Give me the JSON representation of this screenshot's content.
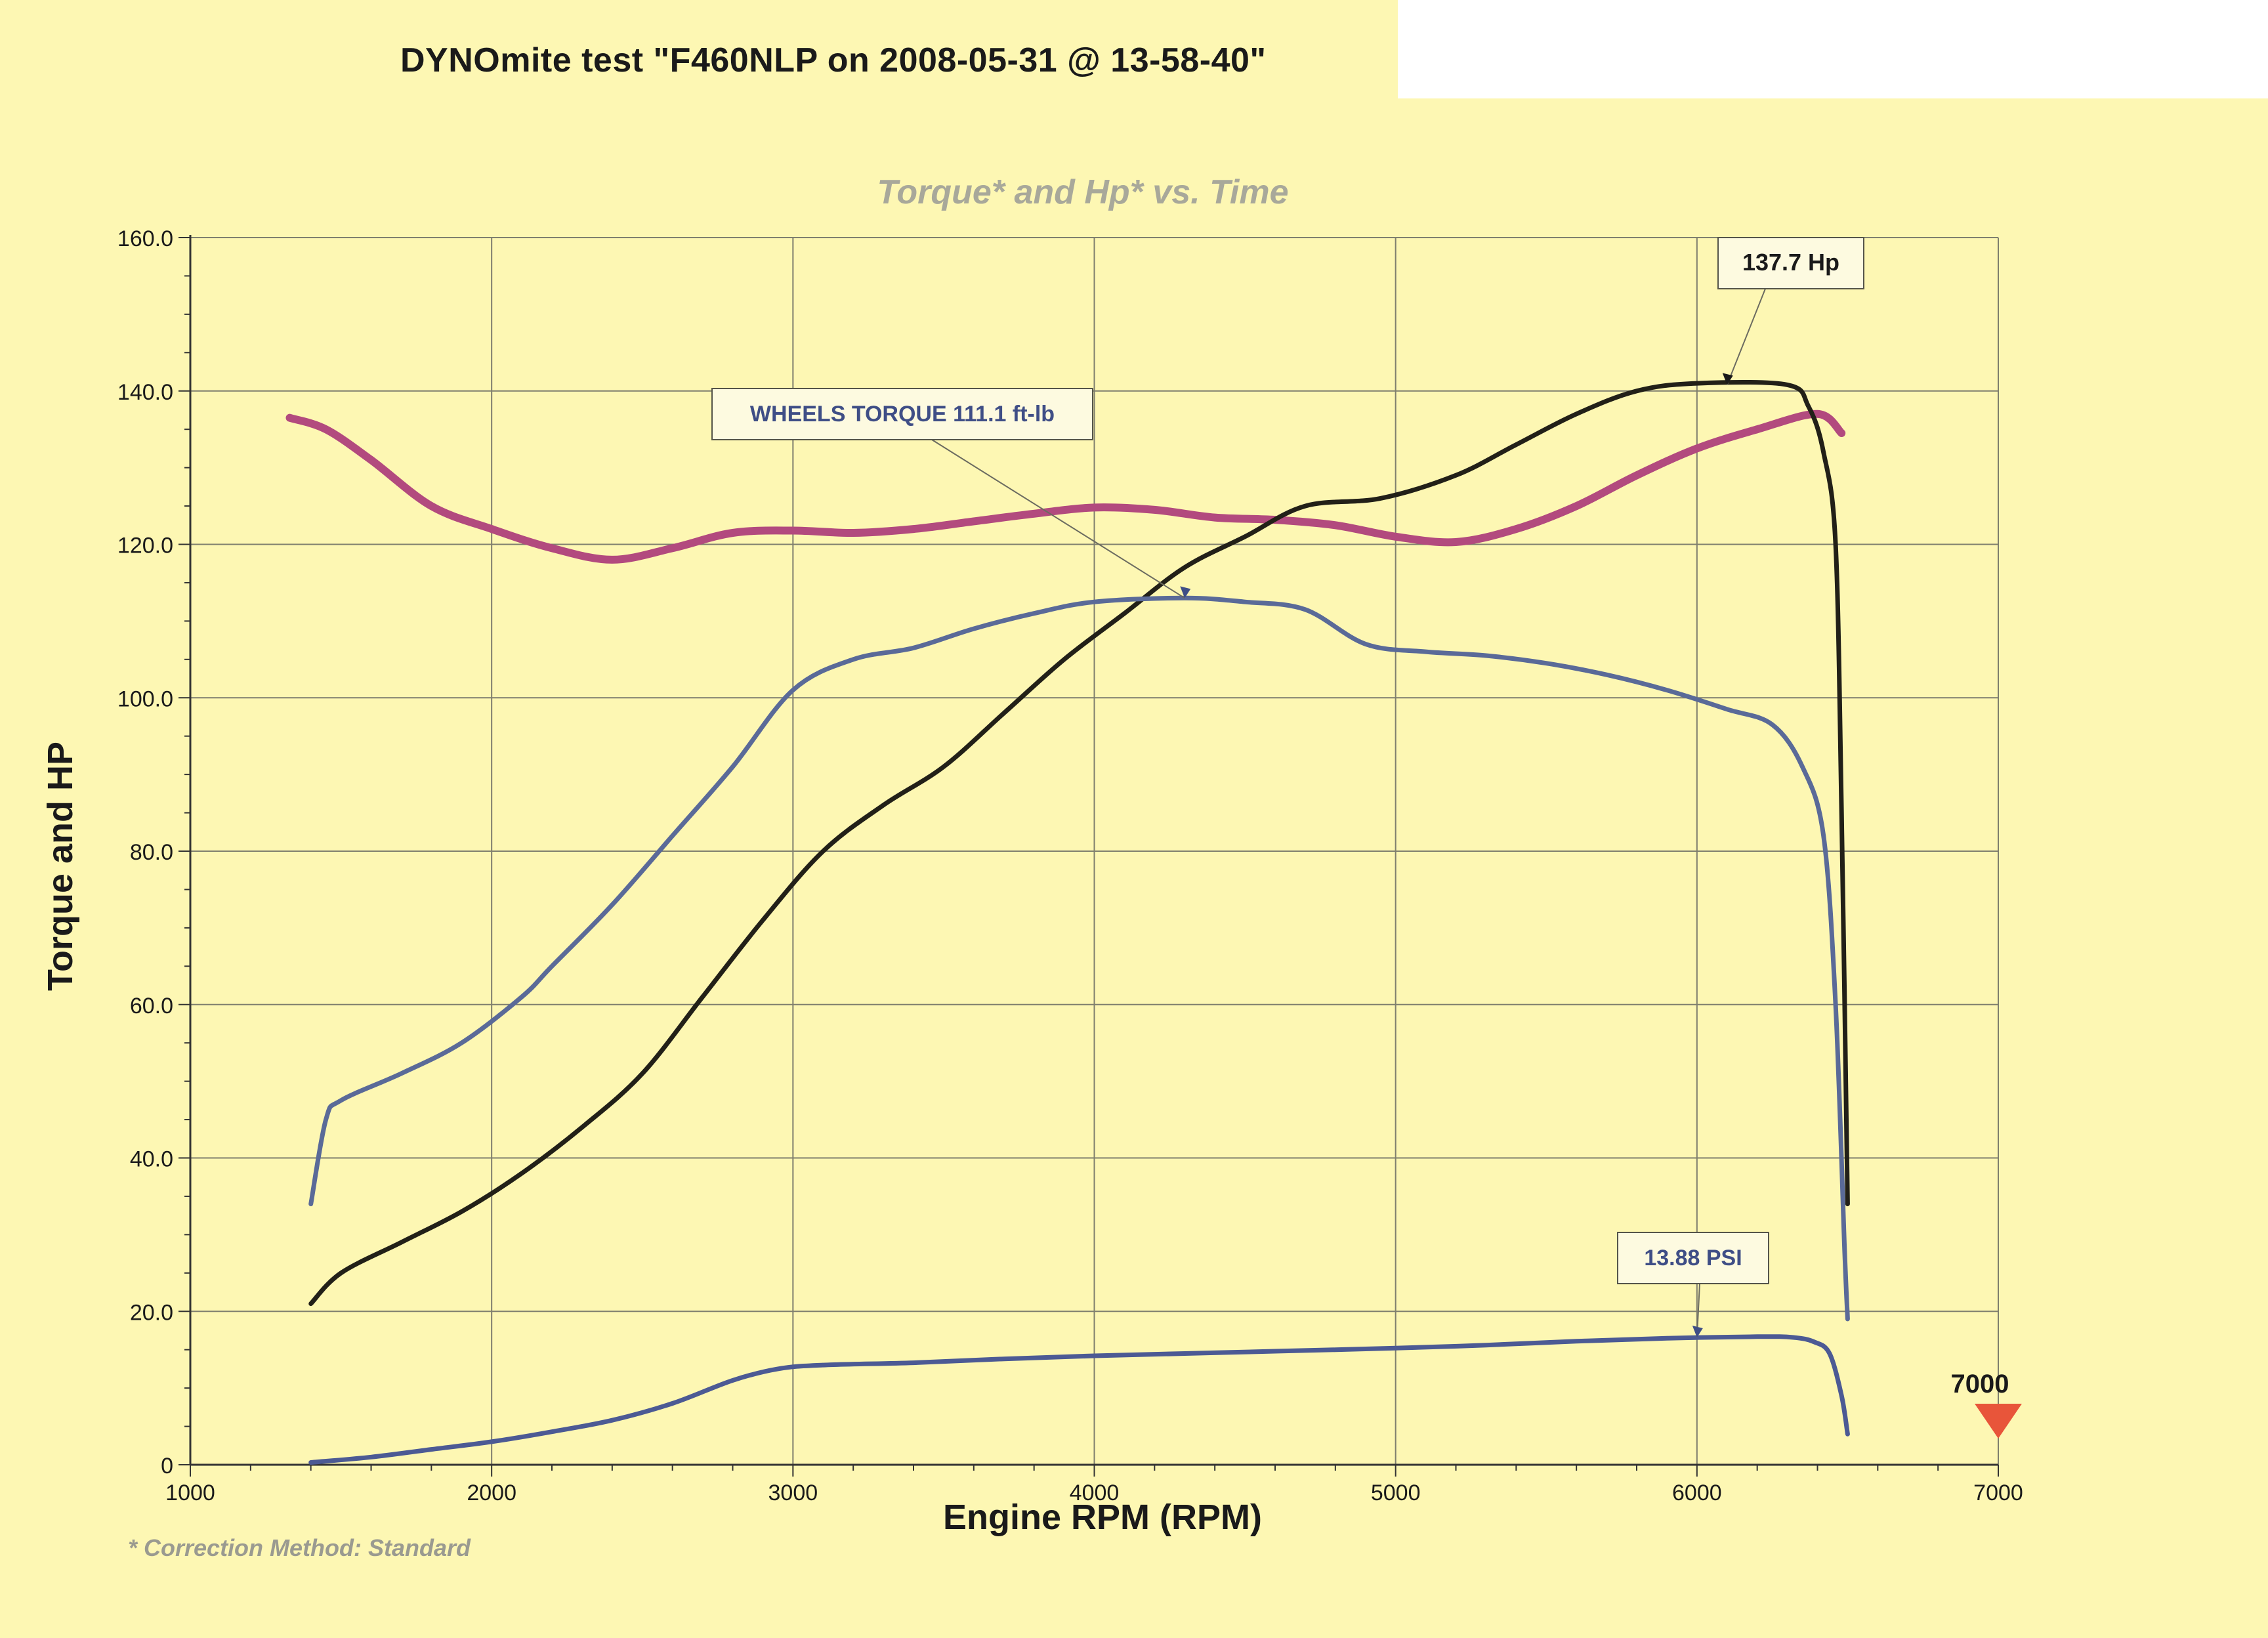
{
  "document": {
    "title": "DYNOmite test \"F460NLP on 2008-05-31 @ 13-58-40\"",
    "footnote": "* Correction Method: Standard"
  },
  "colors": {
    "background": "#fdf7b3",
    "grid": "#7f7f6e",
    "torque": "#5a6a98",
    "hp": "#222018",
    "magenta": "#b24a7e",
    "boost": "#4c5a94",
    "marker": "#e8553a"
  },
  "chart_data": {
    "type": "line",
    "title": "Torque* and Hp* vs. Time",
    "xlabel": "Engine RPM (RPM)",
    "ylabel": "Torque and HP",
    "xlim": [
      1000,
      7000
    ],
    "ylim": [
      0,
      160
    ],
    "grid": true,
    "x_ticks": [
      "1000",
      "2000",
      "3000",
      "4000",
      "5000",
      "6000",
      "7000"
    ],
    "y_ticks": [
      "0",
      "20.0",
      "40.0",
      "60.0",
      "80.0",
      "100.0",
      "120.0",
      "140.0",
      "160.0"
    ],
    "series": [
      {
        "name": "",
        "color": "magenta",
        "points": [
          [
            1330,
            136.5
          ],
          [
            1450,
            135
          ],
          [
            1600,
            131
          ],
          [
            1800,
            125
          ],
          [
            2000,
            122
          ],
          [
            2200,
            119.5
          ],
          [
            2400,
            118
          ],
          [
            2600,
            119.5
          ],
          [
            2800,
            121.5
          ],
          [
            3000,
            121.8
          ],
          [
            3200,
            121.5
          ],
          [
            3400,
            122
          ],
          [
            3600,
            123
          ],
          [
            3800,
            124
          ],
          [
            4000,
            124.8
          ],
          [
            4200,
            124.5
          ],
          [
            4400,
            123.5
          ],
          [
            4600,
            123.2
          ],
          [
            4800,
            122.5
          ],
          [
            5000,
            121
          ],
          [
            5200,
            120.3
          ],
          [
            5400,
            122
          ],
          [
            5600,
            125
          ],
          [
            5800,
            129
          ],
          [
            6000,
            132.5
          ],
          [
            6200,
            135
          ],
          [
            6400,
            137
          ],
          [
            6480,
            134.5
          ]
        ]
      },
      {
        "name": "",
        "color": "hp",
        "points": [
          [
            1400,
            21
          ],
          [
            1500,
            25
          ],
          [
            1700,
            29
          ],
          [
            1900,
            33
          ],
          [
            2100,
            38
          ],
          [
            2300,
            44
          ],
          [
            2500,
            51
          ],
          [
            2700,
            61
          ],
          [
            2900,
            71
          ],
          [
            3100,
            80
          ],
          [
            3300,
            86
          ],
          [
            3500,
            91
          ],
          [
            3700,
            98
          ],
          [
            3900,
            105
          ],
          [
            4100,
            111
          ],
          [
            4300,
            117
          ],
          [
            4500,
            121
          ],
          [
            4700,
            125
          ],
          [
            4950,
            126
          ],
          [
            5200,
            129
          ],
          [
            5400,
            133
          ],
          [
            5600,
            137
          ],
          [
            5800,
            140
          ],
          [
            6000,
            141
          ],
          [
            6300,
            140.8
          ],
          [
            6370,
            138
          ],
          [
            6420,
            132
          ],
          [
            6460,
            120
          ],
          [
            6480,
            85
          ],
          [
            6500,
            34
          ]
        ]
      },
      {
        "name": "",
        "color": "torque",
        "points": [
          [
            1400,
            34
          ],
          [
            1450,
            45
          ],
          [
            1500,
            47.5
          ],
          [
            1700,
            51
          ],
          [
            1900,
            55
          ],
          [
            2100,
            61
          ],
          [
            2200,
            65
          ],
          [
            2400,
            73
          ],
          [
            2600,
            82
          ],
          [
            2800,
            91
          ],
          [
            3000,
            101
          ],
          [
            3200,
            105
          ],
          [
            3400,
            106.5
          ],
          [
            3600,
            109
          ],
          [
            3800,
            111
          ],
          [
            4000,
            112.5
          ],
          [
            4300,
            113
          ],
          [
            4500,
            112.5
          ],
          [
            4700,
            111.5
          ],
          [
            4900,
            107
          ],
          [
            5100,
            106
          ],
          [
            5300,
            105.5
          ],
          [
            5500,
            104.5
          ],
          [
            5700,
            103
          ],
          [
            5900,
            101
          ],
          [
            6100,
            98.5
          ],
          [
            6250,
            96.5
          ],
          [
            6350,
            91
          ],
          [
            6420,
            82
          ],
          [
            6460,
            60
          ],
          [
            6490,
            28
          ],
          [
            6500,
            19
          ]
        ]
      },
      {
        "name": "",
        "color": "boost",
        "points": [
          [
            1400,
            0.3
          ],
          [
            1600,
            1
          ],
          [
            1800,
            2
          ],
          [
            2000,
            3
          ],
          [
            2200,
            4.3
          ],
          [
            2400,
            5.8
          ],
          [
            2600,
            8
          ],
          [
            2800,
            11
          ],
          [
            2950,
            12.5
          ],
          [
            3100,
            13
          ],
          [
            3400,
            13.3
          ],
          [
            3700,
            13.8
          ],
          [
            4000,
            14.2
          ],
          [
            4300,
            14.5
          ],
          [
            4600,
            14.8
          ],
          [
            5000,
            15.2
          ],
          [
            5300,
            15.6
          ],
          [
            5600,
            16.1
          ],
          [
            5900,
            16.5
          ],
          [
            6200,
            16.7
          ],
          [
            6320,
            16.6
          ],
          [
            6390,
            16
          ],
          [
            6440,
            14.5
          ],
          [
            6480,
            9
          ],
          [
            6500,
            4
          ]
        ]
      }
    ],
    "annotations": [
      {
        "text": "137.7 Hp",
        "x": 6100,
        "y": 140.8
      },
      {
        "text": "WHEELS TORQUE 111.1 ft-lb",
        "x": 4300,
        "y": 113
      },
      {
        "text": "13.88 PSI",
        "x": 6000,
        "y": 16.6
      }
    ],
    "marker": {
      "label": "7000",
      "x": 7000
    }
  }
}
